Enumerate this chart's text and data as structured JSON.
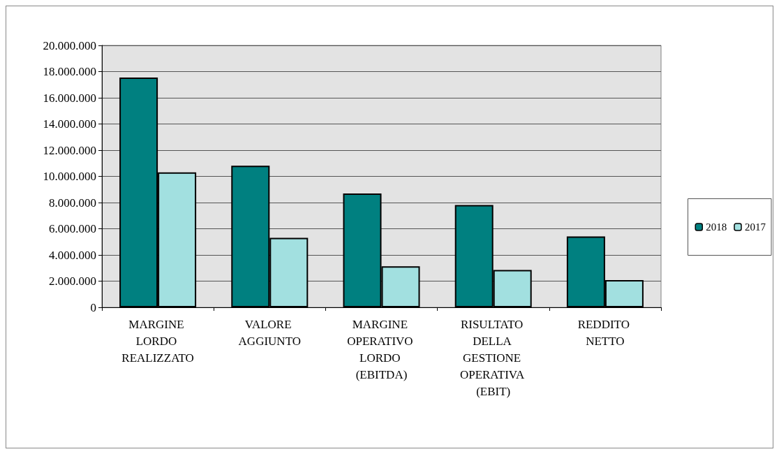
{
  "chart_data": {
    "type": "bar",
    "categories": [
      "MARGINE LORDO REALIZZATO",
      "VALORE AGGIUNTO",
      "MARGINE OPERATIVO LORDO (EBITDA)",
      "RISULTATO DELLA GESTIONE OPERATIVA (EBIT)",
      "REDDITO NETTO"
    ],
    "series": [
      {
        "name": "2018",
        "color": "#008080",
        "values": [
          17550000,
          10820000,
          8700000,
          7820000,
          5420000
        ]
      },
      {
        "name": "2017",
        "color": "#a2e0e0",
        "values": [
          10310000,
          5310000,
          3130000,
          2850000,
          2080000
        ]
      }
    ],
    "ylim": [
      0,
      20000000
    ],
    "yticks": [
      {
        "value": 0,
        "label": "0"
      },
      {
        "value": 2000000,
        "label": "2.000.000"
      },
      {
        "value": 4000000,
        "label": "4.000.000"
      },
      {
        "value": 6000000,
        "label": "6.000.000"
      },
      {
        "value": 8000000,
        "label": "8.000.000"
      },
      {
        "value": 10000000,
        "label": "10.000.000"
      },
      {
        "value": 12000000,
        "label": "12.000.000"
      },
      {
        "value": 14000000,
        "label": "14.000.000"
      },
      {
        "value": 16000000,
        "label": "16.000.000"
      },
      {
        "value": 18000000,
        "label": "18.000.000"
      },
      {
        "value": 20000000,
        "label": "20.000.000"
      }
    ],
    "grid": "y",
    "legend": "right"
  }
}
